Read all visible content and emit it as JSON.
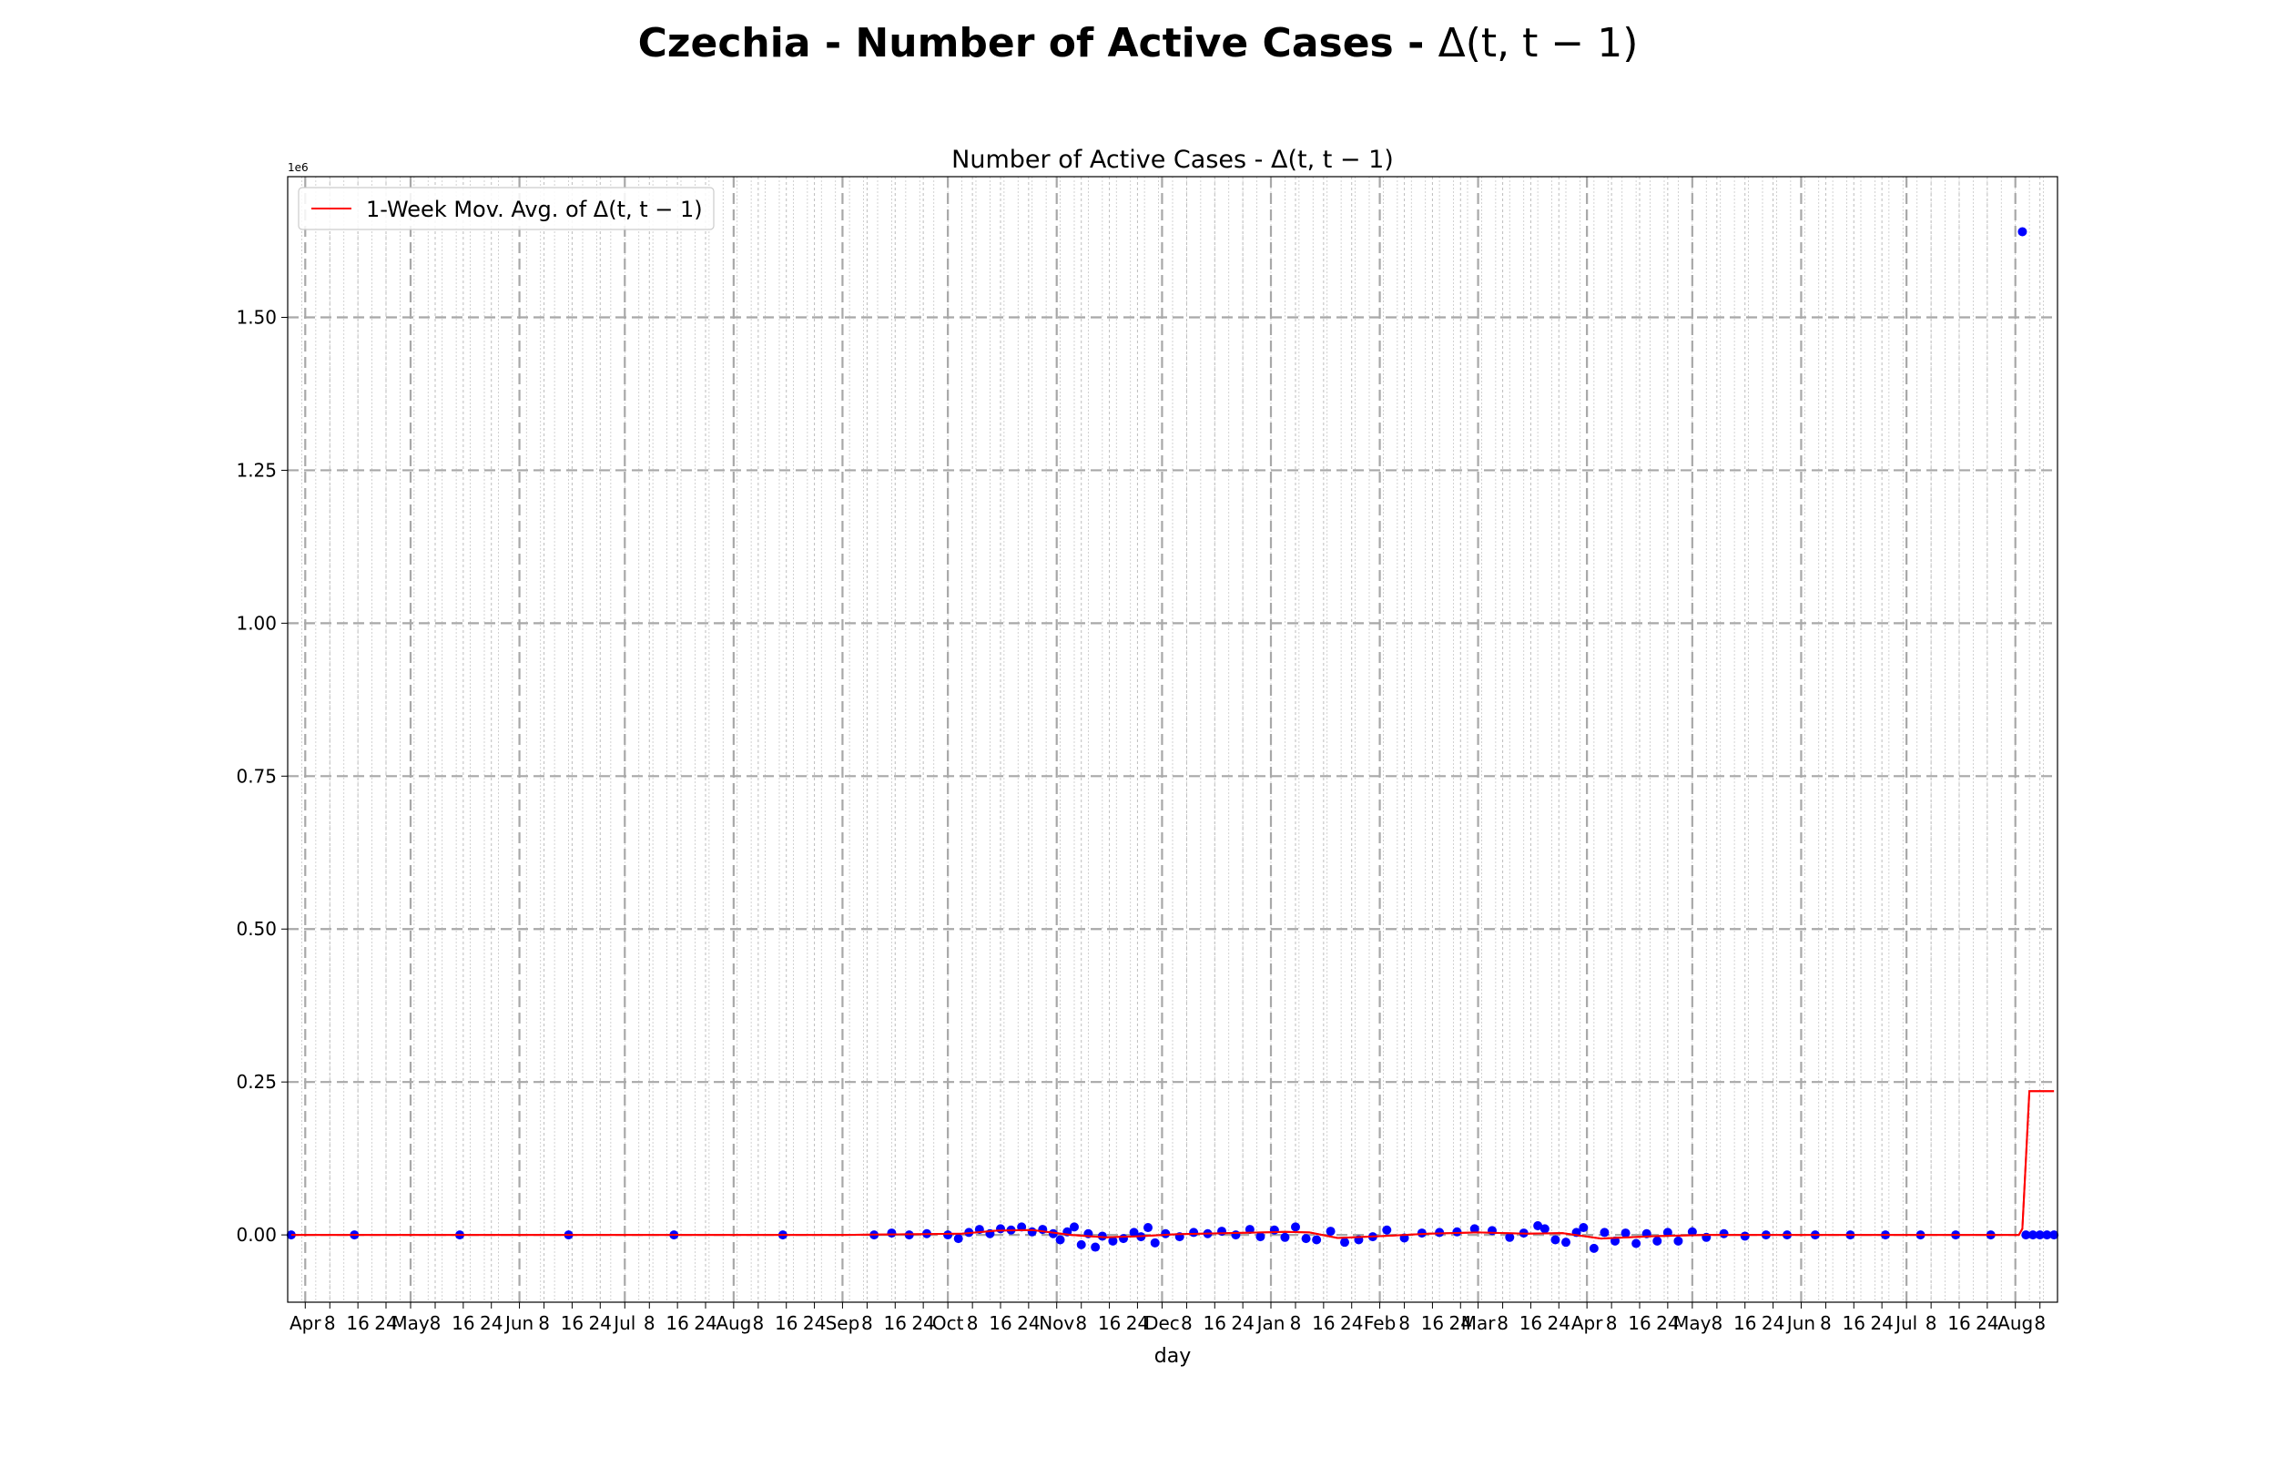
{
  "suptitle": {
    "bold": "Czechia - Number of Active Cases - ",
    "math": "Δ(t, t − 1)"
  },
  "chart_data": {
    "type": "scatter",
    "title": "Number of Active Cases - Δ(t, t − 1)",
    "xlabel": "day",
    "ylabel": "",
    "offset_label": "1e6",
    "xlim": [
      "2020-03-27",
      "2021-08-13"
    ],
    "ylim": [
      -0.11,
      1.73
    ],
    "y_ticks": [
      "0.00",
      "0.25",
      "0.50",
      "0.75",
      "1.00",
      "1.25",
      "1.50"
    ],
    "y_tick_values": [
      0.0,
      0.25,
      0.5,
      0.75,
      1.0,
      1.25,
      1.5
    ],
    "x_ticks": [
      {
        "date": "2020-04-01",
        "label": "Apr",
        "major": true
      },
      {
        "date": "2020-04-08",
        "label": "8",
        "major": false
      },
      {
        "date": "2020-04-16",
        "label": "16",
        "major": false
      },
      {
        "date": "2020-04-24",
        "label": "24",
        "major": false
      },
      {
        "date": "2020-05-01",
        "label": "May",
        "major": true
      },
      {
        "date": "2020-05-08",
        "label": "8",
        "major": false
      },
      {
        "date": "2020-05-16",
        "label": "16",
        "major": false
      },
      {
        "date": "2020-05-24",
        "label": "24",
        "major": false
      },
      {
        "date": "2020-06-01",
        "label": "Jun",
        "major": true
      },
      {
        "date": "2020-06-08",
        "label": "8",
        "major": false
      },
      {
        "date": "2020-06-16",
        "label": "16",
        "major": false
      },
      {
        "date": "2020-06-24",
        "label": "24",
        "major": false
      },
      {
        "date": "2020-07-01",
        "label": "Jul",
        "major": true
      },
      {
        "date": "2020-07-08",
        "label": "8",
        "major": false
      },
      {
        "date": "2020-07-16",
        "label": "16",
        "major": false
      },
      {
        "date": "2020-07-24",
        "label": "24",
        "major": false
      },
      {
        "date": "2020-08-01",
        "label": "Aug",
        "major": true
      },
      {
        "date": "2020-08-08",
        "label": "8",
        "major": false
      },
      {
        "date": "2020-08-16",
        "label": "16",
        "major": false
      },
      {
        "date": "2020-08-24",
        "label": "24",
        "major": false
      },
      {
        "date": "2020-09-01",
        "label": "Sep",
        "major": true
      },
      {
        "date": "2020-09-08",
        "label": "8",
        "major": false
      },
      {
        "date": "2020-09-16",
        "label": "16",
        "major": false
      },
      {
        "date": "2020-09-24",
        "label": "24",
        "major": false
      },
      {
        "date": "2020-10-01",
        "label": "Oct",
        "major": true
      },
      {
        "date": "2020-10-08",
        "label": "8",
        "major": false
      },
      {
        "date": "2020-10-16",
        "label": "16",
        "major": false
      },
      {
        "date": "2020-10-24",
        "label": "24",
        "major": false
      },
      {
        "date": "2020-11-01",
        "label": "Nov",
        "major": true
      },
      {
        "date": "2020-11-08",
        "label": "8",
        "major": false
      },
      {
        "date": "2020-11-16",
        "label": "16",
        "major": false
      },
      {
        "date": "2020-11-24",
        "label": "24",
        "major": false
      },
      {
        "date": "2020-12-01",
        "label": "Dec",
        "major": true
      },
      {
        "date": "2020-12-08",
        "label": "8",
        "major": false
      },
      {
        "date": "2020-12-16",
        "label": "16",
        "major": false
      },
      {
        "date": "2020-12-24",
        "label": "24",
        "major": false
      },
      {
        "date": "2021-01-01",
        "label": "Jan",
        "major": true
      },
      {
        "date": "2021-01-08",
        "label": "8",
        "major": false
      },
      {
        "date": "2021-01-16",
        "label": "16",
        "major": false
      },
      {
        "date": "2021-01-24",
        "label": "24",
        "major": false
      },
      {
        "date": "2021-02-01",
        "label": "Feb",
        "major": true
      },
      {
        "date": "2021-02-08",
        "label": "8",
        "major": false
      },
      {
        "date": "2021-02-16",
        "label": "16",
        "major": false
      },
      {
        "date": "2021-02-24",
        "label": "24",
        "major": false
      },
      {
        "date": "2021-03-01",
        "label": "Mar",
        "major": true
      },
      {
        "date": "2021-03-08",
        "label": "8",
        "major": false
      },
      {
        "date": "2021-03-16",
        "label": "16",
        "major": false
      },
      {
        "date": "2021-03-24",
        "label": "24",
        "major": false
      },
      {
        "date": "2021-04-01",
        "label": "Apr",
        "major": true
      },
      {
        "date": "2021-04-08",
        "label": "8",
        "major": false
      },
      {
        "date": "2021-04-16",
        "label": "16",
        "major": false
      },
      {
        "date": "2021-04-24",
        "label": "24",
        "major": false
      },
      {
        "date": "2021-05-01",
        "label": "May",
        "major": true
      },
      {
        "date": "2021-05-08",
        "label": "8",
        "major": false
      },
      {
        "date": "2021-05-16",
        "label": "16",
        "major": false
      },
      {
        "date": "2021-05-24",
        "label": "24",
        "major": false
      },
      {
        "date": "2021-06-01",
        "label": "Jun",
        "major": true
      },
      {
        "date": "2021-06-08",
        "label": "8",
        "major": false
      },
      {
        "date": "2021-06-16",
        "label": "16",
        "major": false
      },
      {
        "date": "2021-06-24",
        "label": "24",
        "major": false
      },
      {
        "date": "2021-07-01",
        "label": "Jul",
        "major": true
      },
      {
        "date": "2021-07-08",
        "label": "8",
        "major": false
      },
      {
        "date": "2021-07-16",
        "label": "16",
        "major": false
      },
      {
        "date": "2021-07-24",
        "label": "24",
        "major": false
      },
      {
        "date": "2021-08-01",
        "label": "Aug",
        "major": true
      },
      {
        "date": "2021-08-08",
        "label": "8",
        "major": false
      }
    ],
    "grid": true,
    "legend": {
      "position": "top-left",
      "entries": [
        "1-Week Mov. Avg. of Δ(t, t − 1)"
      ]
    },
    "series": [
      {
        "name": "Δ(t, t − 1)",
        "kind": "scatter",
        "color": "#0000ff",
        "x": [
          "2020-03-28",
          "2020-04-15",
          "2020-05-15",
          "2020-06-15",
          "2020-07-15",
          "2020-08-15",
          "2020-09-10",
          "2020-09-15",
          "2020-09-20",
          "2020-09-25",
          "2020-10-01",
          "2020-10-04",
          "2020-10-07",
          "2020-10-10",
          "2020-10-13",
          "2020-10-16",
          "2020-10-19",
          "2020-10-22",
          "2020-10-25",
          "2020-10-28",
          "2020-10-31",
          "2020-11-02",
          "2020-11-04",
          "2020-11-06",
          "2020-11-08",
          "2020-11-10",
          "2020-11-12",
          "2020-11-14",
          "2020-11-17",
          "2020-11-20",
          "2020-11-23",
          "2020-11-25",
          "2020-11-27",
          "2020-11-29",
          "2020-12-02",
          "2020-12-06",
          "2020-12-10",
          "2020-12-14",
          "2020-12-18",
          "2020-12-22",
          "2020-12-26",
          "2020-12-29",
          "2021-01-02",
          "2021-01-05",
          "2021-01-08",
          "2021-01-11",
          "2021-01-14",
          "2021-01-18",
          "2021-01-22",
          "2021-01-26",
          "2021-01-30",
          "2021-02-03",
          "2021-02-08",
          "2021-02-13",
          "2021-02-18",
          "2021-02-23",
          "2021-02-28",
          "2021-03-05",
          "2021-03-10",
          "2021-03-14",
          "2021-03-18",
          "2021-03-20",
          "2021-03-23",
          "2021-03-26",
          "2021-03-29",
          "2021-03-31",
          "2021-04-03",
          "2021-04-06",
          "2021-04-09",
          "2021-04-12",
          "2021-04-15",
          "2021-04-18",
          "2021-04-21",
          "2021-04-24",
          "2021-04-27",
          "2021-05-01",
          "2021-05-05",
          "2021-05-10",
          "2021-05-16",
          "2021-05-22",
          "2021-05-28",
          "2021-06-05",
          "2021-06-15",
          "2021-06-25",
          "2021-07-05",
          "2021-07-15",
          "2021-07-25",
          "2021-08-03",
          "2021-08-04",
          "2021-08-06",
          "2021-08-08",
          "2021-08-10",
          "2021-08-12"
        ],
        "y": [
          0.0,
          0.0,
          0.0,
          0.0,
          0.0,
          0.0,
          0.0,
          0.003,
          0.0,
          0.002,
          0.0,
          -0.006,
          0.004,
          0.009,
          0.002,
          0.01,
          0.008,
          0.013,
          0.005,
          0.009,
          0.002,
          -0.008,
          0.005,
          0.013,
          -0.016,
          0.002,
          -0.02,
          -0.002,
          -0.01,
          -0.006,
          0.004,
          -0.003,
          0.012,
          -0.013,
          0.002,
          -0.003,
          0.004,
          0.002,
          0.006,
          0.0,
          0.009,
          -0.003,
          0.008,
          -0.004,
          0.013,
          -0.006,
          -0.008,
          0.006,
          -0.012,
          -0.008,
          -0.003,
          0.008,
          -0.005,
          0.003,
          0.004,
          0.005,
          0.01,
          0.007,
          -0.004,
          0.003,
          0.015,
          0.01,
          -0.008,
          -0.012,
          0.004,
          0.012,
          -0.022,
          0.004,
          -0.01,
          0.003,
          -0.014,
          0.002,
          -0.01,
          0.004,
          -0.01,
          0.005,
          -0.004,
          0.002,
          -0.002,
          0.0,
          0.0,
          0.0,
          0.0,
          0.0,
          0.0,
          0.0,
          0.0,
          1.64,
          0.0,
          0.0,
          0.0,
          0.0,
          0.0
        ]
      },
      {
        "name": "1-Week Mov. Avg. of Δ(t, t − 1)",
        "kind": "line",
        "color": "#ff0000",
        "x": [
          "2020-03-28",
          "2020-09-01",
          "2020-09-20",
          "2020-10-05",
          "2020-10-15",
          "2020-10-25",
          "2020-11-05",
          "2020-11-15",
          "2020-11-25",
          "2020-12-05",
          "2020-12-20",
          "2021-01-05",
          "2021-01-12",
          "2021-01-20",
          "2021-02-01",
          "2021-02-15",
          "2021-03-01",
          "2021-03-15",
          "2021-03-25",
          "2021-04-05",
          "2021-04-20",
          "2021-05-05",
          "2021-05-20",
          "2021-06-10",
          "2021-07-10",
          "2021-08-02",
          "2021-08-03",
          "2021-08-05",
          "2021-08-12"
        ],
        "y": [
          0.0,
          0.0,
          0.001,
          0.002,
          0.007,
          0.008,
          0.0,
          -0.004,
          -0.002,
          0.001,
          0.003,
          0.005,
          0.004,
          -0.005,
          -0.002,
          0.002,
          0.004,
          0.002,
          0.003,
          -0.006,
          -0.002,
          0.0,
          0.0,
          0.0,
          0.0,
          0.0,
          0.01,
          0.235,
          0.235
        ]
      }
    ]
  }
}
